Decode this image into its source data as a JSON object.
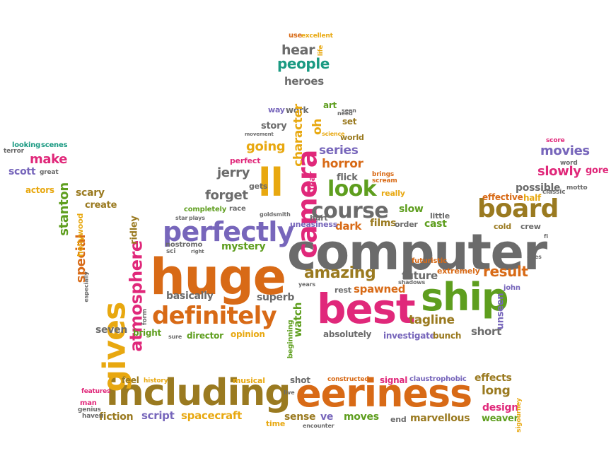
{
  "colors": {
    "orange": "#d86a16",
    "olive": "#9a7a20",
    "green": "#5e9e1e",
    "purple": "#7766bb",
    "pink": "#e0287a",
    "gray": "#6b6b6b",
    "gold": "#e8a810",
    "teal": "#1a9a82"
  },
  "words": [
    {
      "text": "computer",
      "color": "gray",
      "rot": 0
    },
    {
      "text": "huge",
      "color": "orange",
      "rot": 0
    },
    {
      "text": "best",
      "color": "pink",
      "rot": 0
    },
    {
      "text": "ship",
      "color": "green",
      "rot": 0
    },
    {
      "text": "including",
      "color": "olive",
      "rot": 0
    },
    {
      "text": "eeriness",
      "color": "orange",
      "rot": 0
    },
    {
      "text": "gives",
      "color": "gold",
      "rot": -90
    },
    {
      "text": "perfectly",
      "color": "purple",
      "rot": 0
    },
    {
      "text": "definitely",
      "color": "orange",
      "rot": 0
    },
    {
      "text": "ll",
      "color": "gold",
      "rot": 0
    },
    {
      "text": "camera",
      "color": "pink",
      "rot": -90
    },
    {
      "text": "course",
      "color": "gray",
      "rot": 0
    },
    {
      "text": "board",
      "color": "olive",
      "rot": 0
    },
    {
      "text": "look",
      "color": "green",
      "rot": 0
    },
    {
      "text": "atmosphere",
      "color": "pink",
      "rot": -90
    },
    {
      "text": "amazing",
      "color": "olive",
      "rot": 0
    },
    {
      "text": "result",
      "color": "orange",
      "rot": 0
    },
    {
      "text": "people",
      "color": "teal",
      "rot": 0
    },
    {
      "text": "hear",
      "color": "gray",
      "rot": 0
    },
    {
      "text": "heroes",
      "color": "gray",
      "rot": 0
    },
    {
      "text": "movies",
      "color": "purple",
      "rot": 0
    },
    {
      "text": "slowly",
      "color": "pink",
      "rot": 0
    },
    {
      "text": "jerry",
      "color": "gray",
      "rot": 0
    },
    {
      "text": "forget",
      "color": "gray",
      "rot": 0
    },
    {
      "text": "going",
      "color": "gold",
      "rot": 0
    },
    {
      "text": "horror",
      "color": "orange",
      "rot": 0
    },
    {
      "text": "series",
      "color": "purple",
      "rot": 0
    },
    {
      "text": "special",
      "color": "orange",
      "rot": -90
    },
    {
      "text": "stanton",
      "color": "green",
      "rot": -90
    },
    {
      "text": "make",
      "color": "pink",
      "rot": 0
    },
    {
      "text": "scott",
      "color": "purple",
      "rot": 0
    },
    {
      "text": "watch",
      "color": "green",
      "rot": -90
    },
    {
      "text": "tagline",
      "color": "olive",
      "rot": 0
    },
    {
      "text": "spawned",
      "color": "orange",
      "rot": 0
    },
    {
      "text": "long",
      "color": "olive",
      "rot": 0
    },
    {
      "text": "design",
      "color": "pink",
      "rot": 0
    },
    {
      "text": "spacecraft",
      "color": "gold",
      "rot": 0
    },
    {
      "text": "script",
      "color": "purple",
      "rot": 0
    },
    {
      "text": "fiction",
      "color": "olive",
      "rot": 0
    },
    {
      "text": "marvellous",
      "color": "olive",
      "rot": 0
    },
    {
      "text": "moves",
      "color": "green",
      "rot": 0
    },
    {
      "text": "sense",
      "color": "olive",
      "rot": 0
    },
    {
      "text": "ve",
      "color": "purple",
      "rot": 0
    },
    {
      "text": "weaver",
      "color": "green",
      "rot": 0
    },
    {
      "text": "effects",
      "color": "olive",
      "rot": 0
    },
    {
      "text": "mystery",
      "color": "green",
      "rot": 0
    },
    {
      "text": "basically",
      "color": "gray",
      "rot": 0
    },
    {
      "text": "superb",
      "color": "gray",
      "rot": 0
    },
    {
      "text": "future",
      "color": "gray",
      "rot": 0
    },
    {
      "text": "dark",
      "color": "orange",
      "rot": 0
    },
    {
      "text": "films",
      "color": "olive",
      "rot": 0
    },
    {
      "text": "cast",
      "color": "green",
      "rot": 0
    },
    {
      "text": "slow",
      "color": "green",
      "rot": 0
    },
    {
      "text": "possible",
      "color": "gray",
      "rot": 0
    },
    {
      "text": "short",
      "color": "gray",
      "rot": 0
    },
    {
      "text": "seven",
      "color": "gray",
      "rot": 0
    },
    {
      "text": "bright",
      "color": "green",
      "rot": 0
    },
    {
      "text": "director",
      "color": "green",
      "rot": 0
    },
    {
      "text": "opinion",
      "color": "gold",
      "rot": 0
    },
    {
      "text": "absolutely",
      "color": "gray",
      "rot": 0
    },
    {
      "text": "investigate",
      "color": "purple",
      "rot": 0
    },
    {
      "text": "bunch",
      "color": "olive",
      "rot": 0
    },
    {
      "text": "scary",
      "color": "olive",
      "rot": 0
    },
    {
      "text": "create",
      "color": "olive",
      "rot": 0
    },
    {
      "text": "ridley",
      "color": "olive",
      "rot": -90
    },
    {
      "text": "story",
      "color": "gray",
      "rot": 0
    },
    {
      "text": "oh",
      "color": "gold",
      "rot": -90
    },
    {
      "text": "work",
      "color": "gray",
      "rot": 0
    },
    {
      "text": "character",
      "color": "gold",
      "rot": -90
    },
    {
      "text": "art",
      "color": "green",
      "rot": 0
    },
    {
      "text": "set",
      "color": "olive",
      "rot": 0
    },
    {
      "text": "world",
      "color": "olive",
      "rot": 0
    },
    {
      "text": "flick",
      "color": "gray",
      "rot": 0
    },
    {
      "text": "effective",
      "color": "orange",
      "rot": 0
    },
    {
      "text": "half",
      "color": "gold",
      "rot": 0
    },
    {
      "text": "cold",
      "color": "olive",
      "rot": 0
    },
    {
      "text": "crew",
      "color": "gray",
      "rot": 0
    },
    {
      "text": "little",
      "color": "gray",
      "rot": 0
    },
    {
      "text": "order",
      "color": "gray",
      "rot": 0
    },
    {
      "text": "hurt",
      "color": "gray",
      "rot": 0
    },
    {
      "text": "uneasiness",
      "color": "purple",
      "rot": 0
    },
    {
      "text": "extremely",
      "color": "orange",
      "rot": 0
    },
    {
      "text": "futuristic",
      "color": "orange",
      "rot": 0
    },
    {
      "text": "rest",
      "color": "gray",
      "rot": 0
    },
    {
      "text": "gore",
      "color": "pink",
      "rot": 0
    },
    {
      "text": "unseen",
      "color": "purple",
      "rot": -90
    },
    {
      "text": "john",
      "color": "purple",
      "rot": 0
    },
    {
      "text": "actors",
      "color": "gold",
      "rot": 0
    },
    {
      "text": "looking",
      "color": "teal",
      "rot": 0
    },
    {
      "text": "scenes",
      "color": "teal",
      "rot": 0
    },
    {
      "text": "great",
      "color": "gray",
      "rot": 0
    },
    {
      "text": "terror",
      "color": "gray",
      "rot": 0
    },
    {
      "text": "hollywood",
      "color": "gold",
      "rot": -90
    },
    {
      "text": "perfect",
      "color": "pink",
      "rot": 0
    },
    {
      "text": "gets",
      "color": "gray",
      "rot": 0
    },
    {
      "text": "completely",
      "color": "green",
      "rot": 0
    },
    {
      "text": "race",
      "color": "gray",
      "rot": 0
    },
    {
      "text": "nostromo",
      "color": "gray",
      "rot": 0
    },
    {
      "text": "feel",
      "color": "olive",
      "rot": 0
    },
    {
      "text": "shot",
      "color": "gray",
      "rot": 0
    },
    {
      "text": "signal",
      "color": "pink",
      "rot": 0
    },
    {
      "text": "musical",
      "color": "gold",
      "rot": 0
    },
    {
      "text": "time",
      "color": "gold",
      "rot": 0
    },
    {
      "text": "end",
      "color": "gray",
      "rot": 0
    },
    {
      "text": "way",
      "color": "purple",
      "rot": 0
    },
    {
      "text": "use",
      "color": "orange",
      "rot": 0
    },
    {
      "text": "excellent",
      "color": "gold",
      "rot": 0
    },
    {
      "text": "really",
      "color": "gold",
      "rot": 0
    },
    {
      "text": "fear",
      "color": "pink",
      "rot": -90
    },
    {
      "text": "brings",
      "color": "orange",
      "rot": 0
    },
    {
      "text": "scream",
      "color": "orange",
      "rot": 0
    },
    {
      "text": "movement",
      "color": "gray",
      "rot": 0
    },
    {
      "text": "science",
      "color": "gold",
      "rot": 0
    },
    {
      "text": "seen",
      "color": "gray",
      "rot": 0
    },
    {
      "text": "need",
      "color": "gray",
      "rot": 0
    },
    {
      "text": "life",
      "color": "gold",
      "rot": -90
    },
    {
      "text": "score",
      "color": "pink",
      "rot": 0
    },
    {
      "text": "word",
      "color": "gray",
      "rot": 0
    },
    {
      "text": "classic",
      "color": "gray",
      "rot": 0
    },
    {
      "text": "motto",
      "color": "gray",
      "rot": 0
    },
    {
      "text": "ones",
      "color": "gray",
      "rot": 0
    },
    {
      "text": "shadows",
      "color": "gray",
      "rot": 0
    },
    {
      "text": "years",
      "color": "gray",
      "rot": 0
    },
    {
      "text": "beginning",
      "color": "green",
      "rot": -90
    },
    {
      "text": "sure",
      "color": "gray",
      "rot": 0
    },
    {
      "text": "sci",
      "color": "gray",
      "rot": 0
    },
    {
      "text": "right",
      "color": "gray",
      "rot": 0
    },
    {
      "text": "plays",
      "color": "gray",
      "rot": 0
    },
    {
      "text": "star",
      "color": "gray",
      "rot": 0
    },
    {
      "text": "goldsmith",
      "color": "gray",
      "rot": 0
    },
    {
      "text": "form",
      "color": "gray",
      "rot": -90
    },
    {
      "text": "especially",
      "color": "gray",
      "rot": -90
    },
    {
      "text": "history",
      "color": "gold",
      "rot": 0
    },
    {
      "text": "features",
      "color": "pink",
      "rot": 0
    },
    {
      "text": "man",
      "color": "pink",
      "rot": 0
    },
    {
      "text": "genius",
      "color": "gray",
      "rot": 0
    },
    {
      "text": "haven",
      "color": "gray",
      "rot": 0
    },
    {
      "text": "live",
      "color": "gray",
      "rot": 0
    },
    {
      "text": "constructed",
      "color": "orange",
      "rot": 0
    },
    {
      "text": "claustrophobic",
      "color": "purple",
      "rot": 0
    },
    {
      "text": "encounter",
      "color": "gray",
      "rot": 0
    },
    {
      "text": "sigourney",
      "color": "gold",
      "rot": -90
    },
    {
      "text": "fi",
      "color": "gray",
      "rot": 0
    }
  ]
}
